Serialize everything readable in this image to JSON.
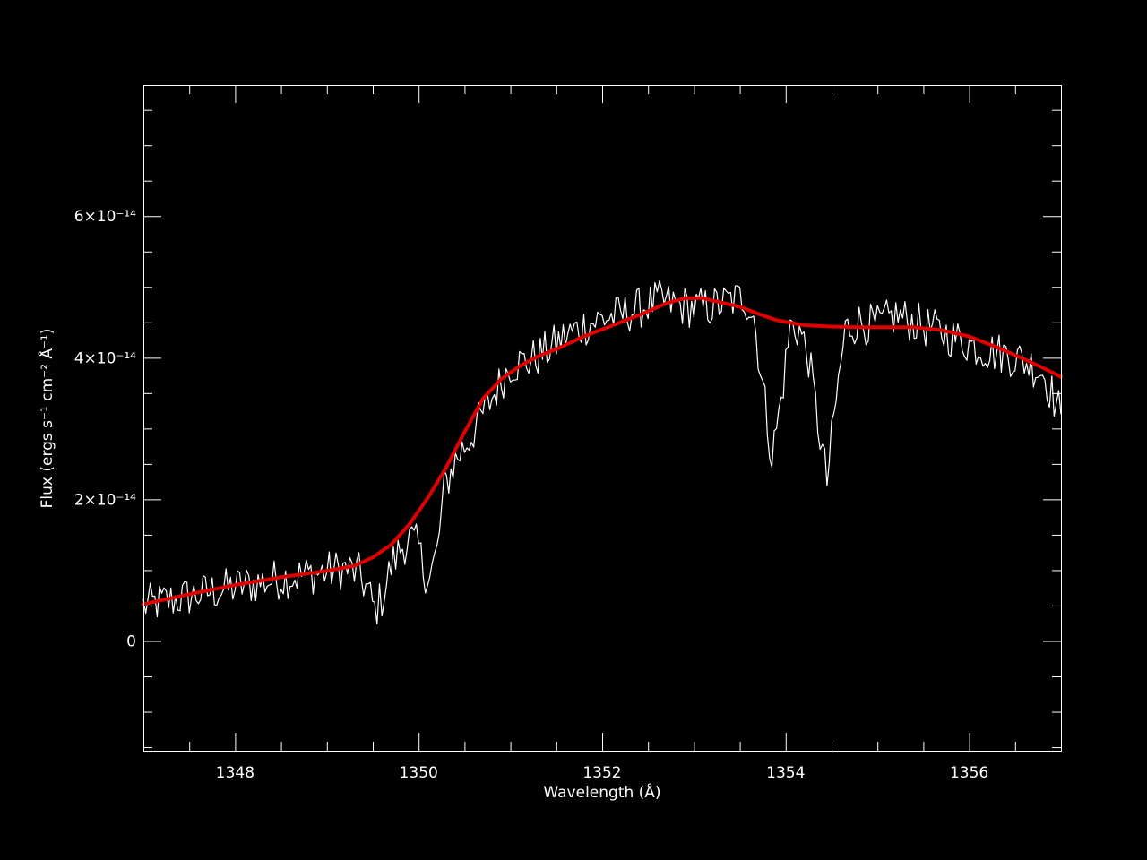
{
  "chart_data": {
    "type": "line",
    "xlabel": "Wavelength (Å)",
    "ylabel": "Flux (ergs s⁻¹ cm⁻² Å⁻¹)",
    "xlim": [
      1347.0,
      1357.0
    ],
    "ylim": [
      -1.55e-14,
      7.85e-14
    ],
    "x_ticks": [
      {
        "value": 1348,
        "label": "1348"
      },
      {
        "value": 1350,
        "label": "1350"
      },
      {
        "value": 1352,
        "label": "1352"
      },
      {
        "value": 1354,
        "label": "1354"
      },
      {
        "value": 1356,
        "label": "1356"
      }
    ],
    "y_ticks": [
      {
        "value": 0,
        "label": "0"
      },
      {
        "value": 2e-14,
        "label": "2×10⁻¹⁴"
      },
      {
        "value": 4e-14,
        "label": "4×10⁻¹⁴"
      },
      {
        "value": 6e-14,
        "label": "6×10⁻¹⁴"
      }
    ],
    "x_minor_step": 0.5,
    "y_minor_step": 5e-15,
    "grid": false,
    "colors": {
      "background": "#000000",
      "axes": "#ffffff",
      "observed": "#ffffff",
      "model": "#e00000"
    },
    "series": [
      {
        "style": "noisy",
        "color": "#ffffff",
        "x": [
          1347.0,
          1347.25,
          1347.5,
          1347.75,
          1348.0,
          1348.25,
          1348.5,
          1348.75,
          1349.0,
          1349.2,
          1349.35,
          1349.45,
          1349.52,
          1349.6,
          1349.7,
          1349.8,
          1349.9,
          1350.0,
          1350.05,
          1350.12,
          1350.2,
          1350.28,
          1350.4,
          1350.55,
          1350.7,
          1350.85,
          1351.0,
          1351.2,
          1351.4,
          1351.6,
          1351.8,
          1352.0,
          1352.2,
          1352.4,
          1352.6,
          1352.8,
          1353.0,
          1353.2,
          1353.4,
          1353.55,
          1353.65,
          1353.75,
          1353.85,
          1353.95,
          1354.05,
          1354.15,
          1354.25,
          1354.35,
          1354.45,
          1354.55,
          1354.65,
          1354.8,
          1355.0,
          1355.2,
          1355.4,
          1355.6,
          1355.8,
          1356.0,
          1356.2,
          1356.4,
          1356.6,
          1356.8,
          1357.0
        ],
        "y": [
          5e-15,
          5.6e-15,
          6.3e-15,
          7e-15,
          7.6e-15,
          8.2e-15,
          8.8e-15,
          9.3e-15,
          9.8e-15,
          1.02e-14,
          9.5e-15,
          7e-15,
          4.3e-15,
          6e-15,
          1.05e-14,
          1.3e-14,
          1.45e-14,
          1.32e-14,
          1.02e-14,
          8.8e-15,
          1.25e-14,
          2.15e-14,
          2.55e-14,
          2.85e-14,
          3.2e-14,
          3.55e-14,
          3.9e-14,
          3.95e-14,
          4.1e-14,
          4.3e-14,
          4.45e-14,
          4.55e-14,
          4.6e-14,
          4.7e-14,
          4.8e-14,
          4.75e-14,
          4.7e-14,
          4.72e-14,
          4.8e-14,
          4.85e-14,
          4.6e-14,
          3.6e-14,
          2.6e-14,
          3.4e-14,
          4.45e-14,
          4.4e-14,
          4e-14,
          3.1e-14,
          2.25e-14,
          3.4e-14,
          4.4e-14,
          4.5e-14,
          4.45e-14,
          4.6e-14,
          4.5e-14,
          4.4e-14,
          4.3e-14,
          4.2e-14,
          4.1e-14,
          4.05e-14,
          3.95e-14,
          3.8e-14,
          3.2e-14
        ]
      },
      {
        "style": "smooth",
        "color": "#e00000",
        "x": [
          1347.0,
          1347.5,
          1348.0,
          1348.5,
          1349.0,
          1349.3,
          1349.5,
          1349.7,
          1349.9,
          1350.1,
          1350.3,
          1350.5,
          1350.7,
          1350.9,
          1351.1,
          1351.3,
          1351.5,
          1351.8,
          1352.1,
          1352.4,
          1352.7,
          1352.9,
          1353.1,
          1353.3,
          1353.5,
          1353.7,
          1353.9,
          1354.2,
          1354.5,
          1354.8,
          1355.1,
          1355.4,
          1355.7,
          1356.0,
          1356.3,
          1356.6,
          1356.8,
          1357.0
        ],
        "y": [
          5.2e-15,
          6.6e-15,
          7.9e-15,
          9e-15,
          9.9e-15,
          1.06e-14,
          1.18e-14,
          1.36e-14,
          1.65e-14,
          2.02e-14,
          2.45e-14,
          2.95e-14,
          3.42e-14,
          3.7e-14,
          3.88e-14,
          4.02e-14,
          4.12e-14,
          4.3e-14,
          4.45e-14,
          4.6e-14,
          4.77e-14,
          4.84e-14,
          4.84e-14,
          4.78e-14,
          4.72e-14,
          4.62e-14,
          4.53e-14,
          4.46e-14,
          4.44e-14,
          4.43e-14,
          4.43e-14,
          4.43e-14,
          4.39e-14,
          4.3e-14,
          4.15e-14,
          3.98e-14,
          3.86e-14,
          3.73e-14
        ]
      }
    ]
  }
}
